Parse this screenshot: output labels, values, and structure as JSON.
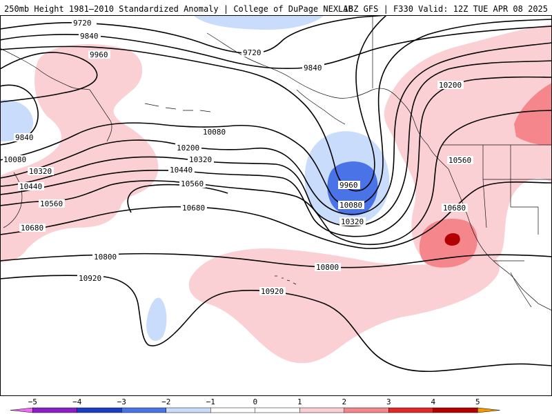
{
  "header": {
    "title": "250mb Height 1981–2010 Standardized Anomaly | College of DuPage NEXLAB",
    "run_info": "18Z GFS | F330 Valid: 12Z TUE APR 08 2025"
  },
  "contour_labels": {
    "c9720a": "9720",
    "c9720b": "9720",
    "c9840a": "9840",
    "c9840b": "9840",
    "c9840c": "9840",
    "c9960a": "9960",
    "c9960b": "9960",
    "c10080a": "10080",
    "c10080b": "10080",
    "c10080c": "10080",
    "c10200a": "10200",
    "c10200b": "10200",
    "c10320a": "10320",
    "c10320b": "10320",
    "c10320c": "10320",
    "c10440a": "10440",
    "c10440b": "10440",
    "c10560a": "10560",
    "c10560b": "10560",
    "c10560c": "10560",
    "c10680a": "10680",
    "c10680b": "10680",
    "c10680c": "10680",
    "c10800a": "10800",
    "c10800b": "10800",
    "c10920a": "10920",
    "c10920b": "10920"
  },
  "legend": {
    "ticks": [
      "−5",
      "−4",
      "−3",
      "−2",
      "−1",
      "0",
      "1",
      "2",
      "3",
      "4",
      "5"
    ],
    "colors": {
      "m5": "#f06cf0",
      "m4": "#8a1fc8",
      "m3": "#1b3fc0",
      "m2": "#4a73e8",
      "m1": "#c9dcfb",
      "z": "#ffffff",
      "p1": "#fbcfd3",
      "p2": "#f4868c",
      "p3": "#e02828",
      "p4": "#b30000",
      "p5": "#f29a00"
    }
  }
}
